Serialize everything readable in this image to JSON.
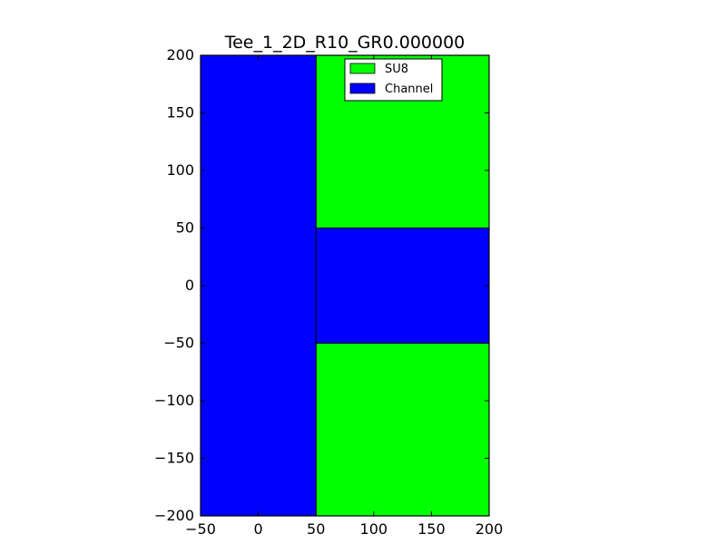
{
  "chart_data": {
    "type": "area",
    "title": "Tee_1_2D_R10_GR0.000000",
    "xlabel": "",
    "ylabel": "",
    "xlim": [
      -50,
      200
    ],
    "ylim": [
      -200,
      200
    ],
    "x_ticks": [
      -50,
      0,
      50,
      100,
      150,
      200
    ],
    "y_ticks": [
      -200,
      -150,
      -100,
      -50,
      0,
      50,
      100,
      150,
      200
    ],
    "x_tick_labels": [
      "−50",
      "0",
      "50",
      "100",
      "150",
      "200"
    ],
    "y_tick_labels": [
      "−200",
      "−150",
      "−100",
      "−50",
      "0",
      "50",
      "100",
      "150",
      "200"
    ],
    "grid": false,
    "legend": {
      "placement": "upper-center"
    },
    "series": [
      {
        "name": "SU8",
        "color": "#00ff00",
        "regions": [
          {
            "x": [
              50,
              200
            ],
            "y": [
              50,
              200
            ]
          },
          {
            "x": [
              50,
              200
            ],
            "y": [
              -200,
              -50
            ]
          }
        ]
      },
      {
        "name": "Channel",
        "color": "#0000ff",
        "regions": [
          {
            "x": [
              -50,
              50
            ],
            "y": [
              -200,
              200
            ]
          },
          {
            "x": [
              50,
              200
            ],
            "y": [
              -50,
              50
            ]
          }
        ]
      }
    ]
  }
}
